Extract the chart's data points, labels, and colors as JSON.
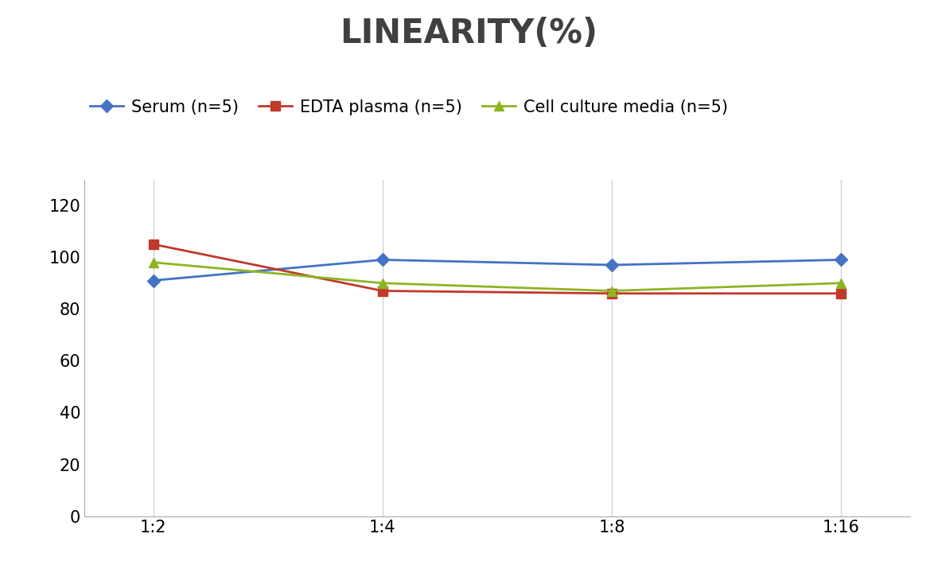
{
  "title": "LINEARITY(%)",
  "x_labels": [
    "1:2",
    "1:4",
    "1:8",
    "1:16"
  ],
  "x_positions": [
    0,
    1,
    2,
    3
  ],
  "series": [
    {
      "name": "Serum (n=5)",
      "values": [
        91,
        99,
        97,
        99
      ],
      "color": "#4472C4",
      "marker": "D",
      "markersize": 8,
      "linewidth": 2
    },
    {
      "name": "EDTA plasma (n=5)",
      "values": [
        105,
        87,
        86,
        86
      ],
      "color": "#C0392B",
      "marker": "s",
      "markersize": 8,
      "linewidth": 2
    },
    {
      "name": "Cell culture media (n=5)",
      "values": [
        98,
        90,
        87,
        90
      ],
      "color": "#8DB523",
      "marker": "^",
      "markersize": 8,
      "linewidth": 2
    }
  ],
  "ylim": [
    0,
    130
  ],
  "yticks": [
    0,
    20,
    40,
    60,
    80,
    100,
    120
  ],
  "grid_color": "#D3D3D3",
  "background_color": "#FFFFFF",
  "title_fontsize": 30,
  "tick_fontsize": 15,
  "legend_fontsize": 15,
  "title_color": "#404040"
}
